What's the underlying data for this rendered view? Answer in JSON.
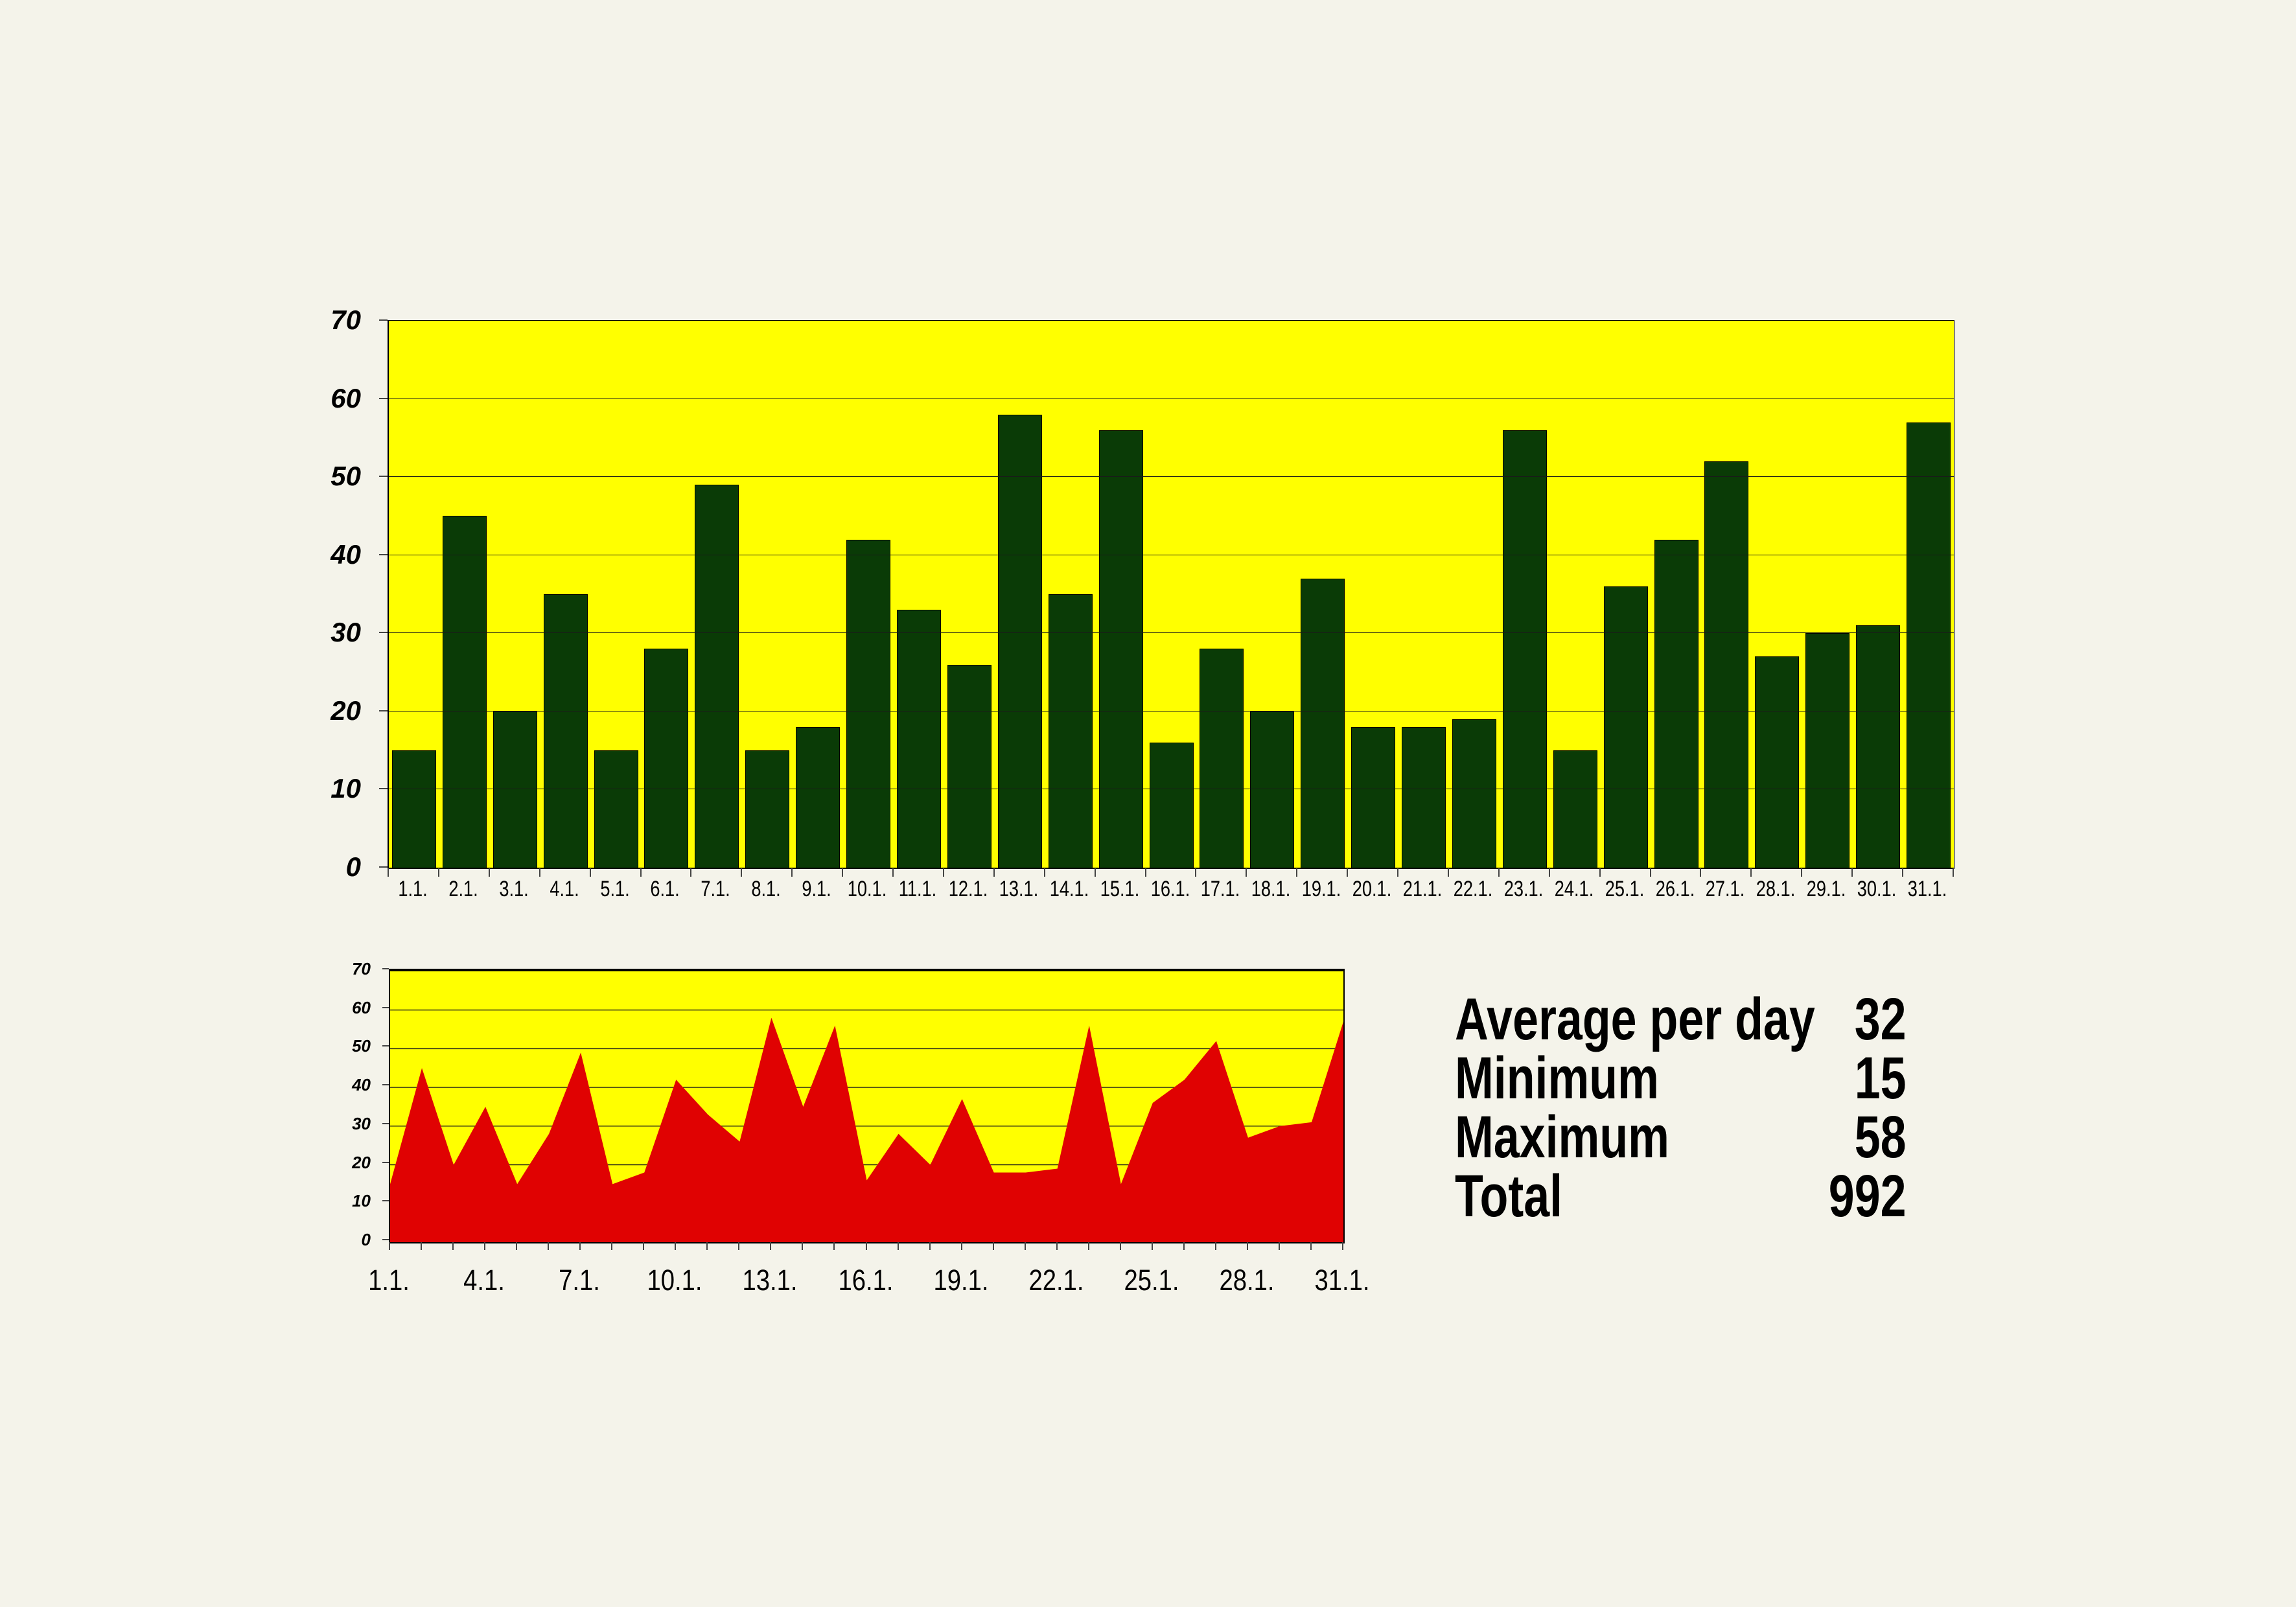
{
  "colors": {
    "background": "#F4F3EA",
    "plot_fill": "#FFFF00",
    "bar_fill": "#0A3B06",
    "area_fill": "#E00202",
    "gridline": "#1A1A1A",
    "axis": "#000000",
    "text": "#000000"
  },
  "bar_chart": {
    "y_tick_labels": [
      "0",
      "10",
      "20",
      "30",
      "40",
      "50",
      "60",
      "70"
    ],
    "x_labels": [
      "1.1.",
      "2.1.",
      "3.1.",
      "4.1.",
      "5.1.",
      "6.1.",
      "7.1.",
      "8.1.",
      "9.1.",
      "10.1.",
      "11.1.",
      "12.1.",
      "13.1.",
      "14.1.",
      "15.1.",
      "16.1.",
      "17.1.",
      "18.1.",
      "19.1.",
      "20.1.",
      "21.1.",
      "22.1.",
      "23.1.",
      "24.1.",
      "25.1.",
      "26.1.",
      "27.1.",
      "28.1.",
      "29.1.",
      "30.1.",
      "31.1."
    ],
    "values": [
      15,
      45,
      20,
      35,
      15,
      28,
      49,
      15,
      18,
      42,
      33,
      26,
      58,
      35,
      56,
      16,
      28,
      20,
      37,
      18,
      18,
      19,
      56,
      15,
      36,
      42,
      52,
      27,
      30,
      31,
      57
    ]
  },
  "area_chart": {
    "y_tick_labels": [
      "0",
      "10",
      "20",
      "30",
      "40",
      "50",
      "60",
      "70"
    ],
    "x_labels": [
      "1.1.",
      "4.1.",
      "7.1.",
      "10.1.",
      "13.1.",
      "16.1.",
      "19.1.",
      "22.1.",
      "25.1.",
      "28.1.",
      "31.1."
    ],
    "values": [
      15,
      45,
      20,
      35,
      15,
      28,
      49,
      15,
      18,
      42,
      33,
      26,
      58,
      35,
      56,
      16,
      28,
      20,
      37,
      18,
      18,
      19,
      56,
      15,
      36,
      42,
      52,
      27,
      30,
      31,
      57
    ]
  },
  "stats": {
    "rows": [
      {
        "label": "Average per day",
        "value": "32"
      },
      {
        "label": "Minimum",
        "value": "15"
      },
      {
        "label": "Maximum",
        "value": "58"
      },
      {
        "label": "Total",
        "value": "992"
      }
    ]
  },
  "chart_data": [
    {
      "type": "bar",
      "categories": [
        "1.1.",
        "2.1.",
        "3.1.",
        "4.1.",
        "5.1.",
        "6.1.",
        "7.1.",
        "8.1.",
        "9.1.",
        "10.1.",
        "11.1.",
        "12.1.",
        "13.1.",
        "14.1.",
        "15.1.",
        "16.1.",
        "17.1.",
        "18.1.",
        "19.1.",
        "20.1.",
        "21.1.",
        "22.1.",
        "23.1.",
        "24.1.",
        "25.1.",
        "26.1.",
        "27.1.",
        "28.1.",
        "29.1.",
        "30.1.",
        "31.1."
      ],
      "values": [
        15,
        45,
        20,
        35,
        15,
        28,
        49,
        15,
        18,
        42,
        33,
        26,
        58,
        35,
        56,
        16,
        28,
        20,
        37,
        18,
        18,
        19,
        56,
        15,
        36,
        42,
        52,
        27,
        30,
        31,
        57
      ],
      "title": "",
      "xlabel": "",
      "ylabel": "",
      "ylim": [
        0,
        70
      ],
      "ytick_step": 10,
      "grid": true,
      "legend": false,
      "bar_color": "#0A3B06",
      "plot_background": "#FFFF00"
    },
    {
      "type": "area",
      "categories": [
        "1.1.",
        "2.1.",
        "3.1.",
        "4.1.",
        "5.1.",
        "6.1.",
        "7.1.",
        "8.1.",
        "9.1.",
        "10.1.",
        "11.1.",
        "12.1.",
        "13.1.",
        "14.1.",
        "15.1.",
        "16.1.",
        "17.1.",
        "18.1.",
        "19.1.",
        "20.1.",
        "21.1.",
        "22.1.",
        "23.1.",
        "24.1.",
        "25.1.",
        "26.1.",
        "27.1.",
        "28.1.",
        "29.1.",
        "30.1.",
        "31.1."
      ],
      "values": [
        15,
        45,
        20,
        35,
        15,
        28,
        49,
        15,
        18,
        42,
        33,
        26,
        58,
        35,
        56,
        16,
        28,
        20,
        37,
        18,
        18,
        19,
        56,
        15,
        36,
        42,
        52,
        27,
        30,
        31,
        57
      ],
      "title": "",
      "xlabel": "",
      "ylabel": "",
      "ylim": [
        0,
        70
      ],
      "ytick_step": 10,
      "grid": true,
      "legend": false,
      "x_tick_labels_shown": [
        "1.1.",
        "4.1.",
        "7.1.",
        "10.1.",
        "13.1.",
        "16.1.",
        "19.1.",
        "22.1.",
        "25.1.",
        "28.1.",
        "31.1."
      ],
      "area_color": "#E00202",
      "plot_background": "#FFFF00"
    }
  ]
}
